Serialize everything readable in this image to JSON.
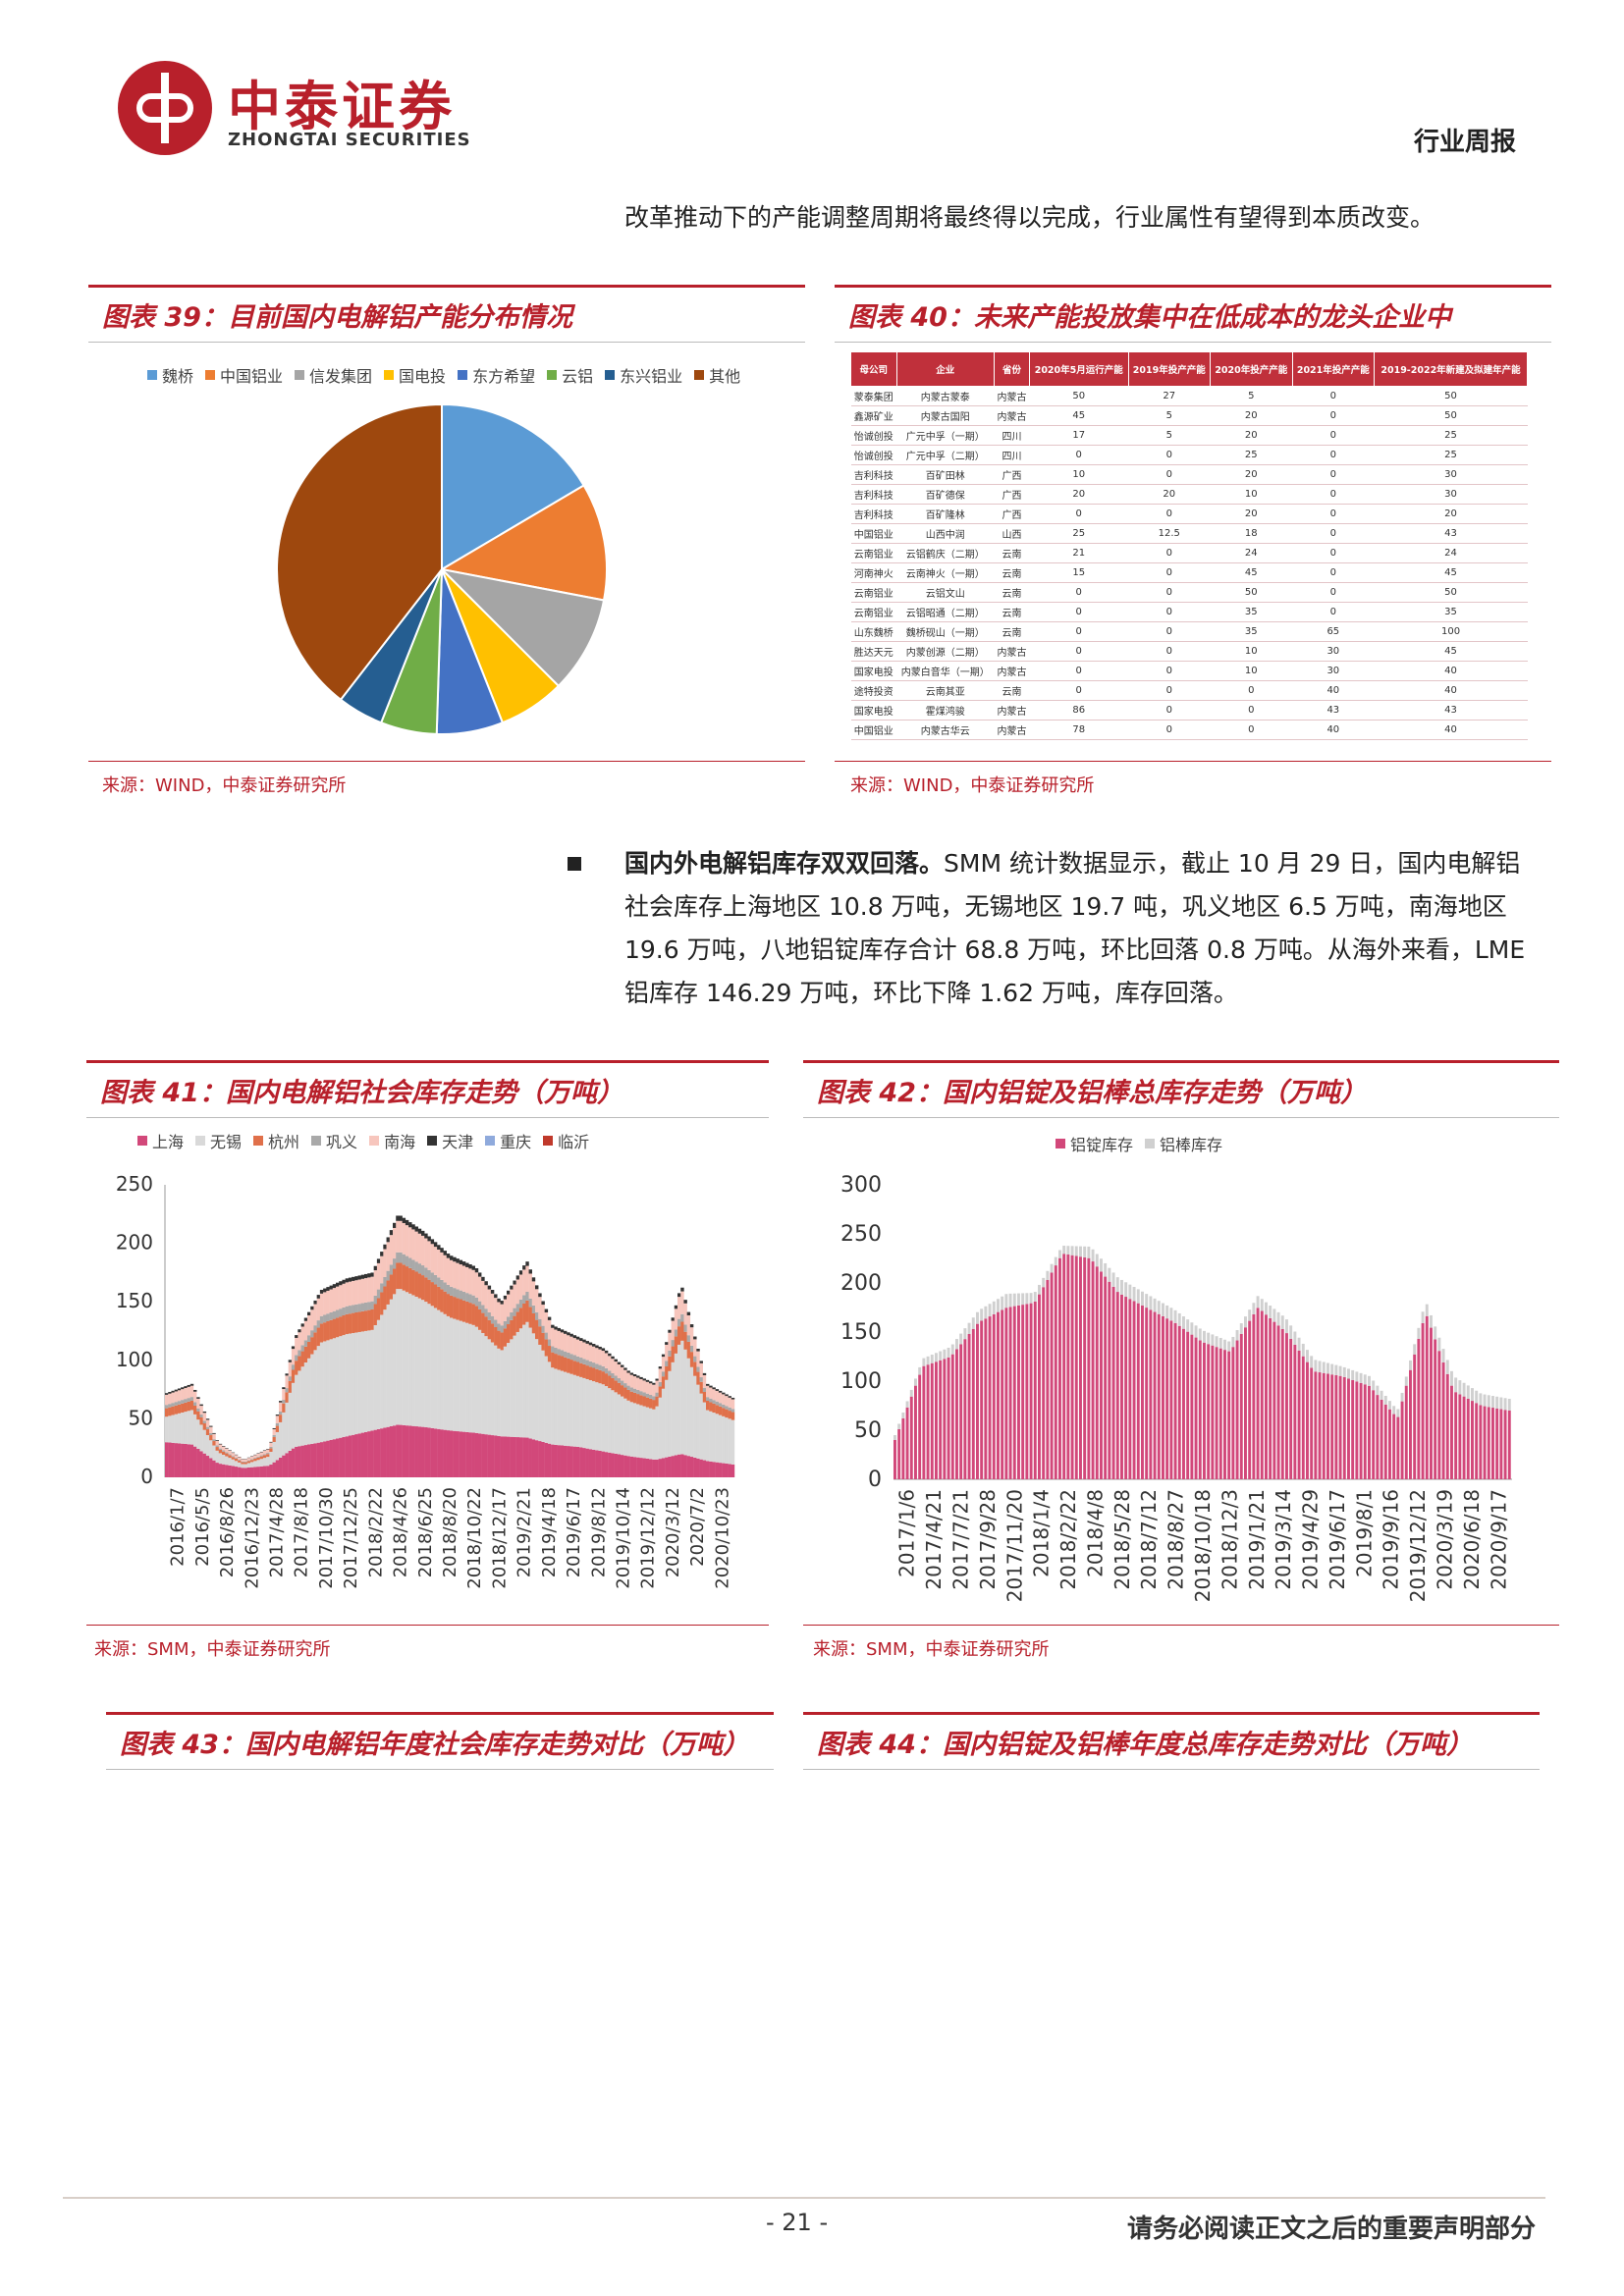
{
  "header": {
    "logo_cn": "中泰证券",
    "logo_en": "ZHONGTAI SECURITIES",
    "report_type": "行业周报"
  },
  "intro_text": "改革推动下的产能调整周期将最终得以完成，行业属性有望得到本质改变。",
  "fig39": {
    "title": "图表 39：目前国内电解铝产能分布情况",
    "source": "来源：WIND，中泰证券研究所"
  },
  "fig40": {
    "title": "图表 40：未来产能投放集中在低成本的龙头企业中",
    "source": "来源：WIND，中泰证券研究所",
    "headers": [
      "母公司",
      "企业",
      "省份",
      "2020年5月运行产能",
      "2019年投产产能",
      "2020年投产产能",
      "2021年投产产能",
      "2019-2022年新建及拟建年产能"
    ],
    "rows": [
      [
        "蒙泰集团",
        "内蒙古蒙泰",
        "内蒙古",
        "50",
        "27",
        "5",
        "0",
        "50"
      ],
      [
        "鑫源矿业",
        "内蒙古国阳",
        "内蒙古",
        "45",
        "5",
        "20",
        "0",
        "50"
      ],
      [
        "怡诚创投",
        "广元中孚（一期）",
        "四川",
        "17",
        "5",
        "20",
        "0",
        "25"
      ],
      [
        "怡诚创投",
        "广元中孚（二期）",
        "四川",
        "0",
        "0",
        "25",
        "0",
        "25"
      ],
      [
        "吉利科技",
        "百矿田林",
        "广西",
        "10",
        "0",
        "20",
        "0",
        "30"
      ],
      [
        "吉利科技",
        "百矿德保",
        "广西",
        "20",
        "20",
        "10",
        "0",
        "30"
      ],
      [
        "吉利科技",
        "百矿隆林",
        "广西",
        "0",
        "0",
        "20",
        "0",
        "20"
      ],
      [
        "中国铝业",
        "山西中润",
        "山西",
        "25",
        "12.5",
        "18",
        "0",
        "43"
      ],
      [
        "云南铝业",
        "云铝鹤庆（二期）",
        "云南",
        "21",
        "0",
        "24",
        "0",
        "24"
      ],
      [
        "河南神火",
        "云南神火（一期）",
        "云南",
        "15",
        "0",
        "45",
        "0",
        "45"
      ],
      [
        "云南铝业",
        "云铝文山",
        "云南",
        "0",
        "0",
        "50",
        "0",
        "50"
      ],
      [
        "云南铝业",
        "云铝昭通（二期）",
        "云南",
        "0",
        "0",
        "35",
        "0",
        "35"
      ],
      [
        "山东魏桥",
        "魏桥砚山（一期）",
        "云南",
        "0",
        "0",
        "35",
        "65",
        "100"
      ],
      [
        "胜达天元",
        "内蒙创源（二期）",
        "内蒙古",
        "0",
        "0",
        "10",
        "30",
        "45"
      ],
      [
        "国家电投",
        "内蒙白音华（一期）",
        "内蒙古",
        "0",
        "0",
        "10",
        "30",
        "40"
      ],
      [
        "途特投资",
        "云南其亚",
        "云南",
        "0",
        "0",
        "0",
        "40",
        "40"
      ],
      [
        "国家电投",
        "霍煤鸿骏",
        "内蒙古",
        "86",
        "0",
        "0",
        "43",
        "43"
      ],
      [
        "中国铝业",
        "内蒙古华云",
        "内蒙古",
        "78",
        "0",
        "0",
        "40",
        "40"
      ]
    ]
  },
  "bullet": {
    "bold": "国内外电解铝库存双双回落。",
    "text": "SMM 统计数据显示，截止 10 月 29 日，国内电解铝社会库存上海地区 10.8 万吨，无锡地区 19.7 吨，巩义地区 6.5 万吨，南海地区 19.6 万吨，八地铝锭库存合计 68.8 万吨，环比回落 0.8 万吨。从海外来看，LME 铝库存 146.29 万吨，环比下降 1.62 万吨，库存回落。"
  },
  "fig41": {
    "title": "图表 41：国内电解铝社会库存走势（万吨）",
    "source": "来源：SMM，中泰证券研究所"
  },
  "fig42": {
    "title": "图表 42：国内铝锭及铝棒总库存走势（万吨）",
    "source": "来源：SMM，中泰证券研究所"
  },
  "fig43": {
    "title": "图表 43：国内电解铝年度社会库存走势对比（万吨）"
  },
  "fig44": {
    "title": "图表 44：国内铝锭及铝棒年度总库存走势对比（万吨）"
  },
  "footer": {
    "page": "- 21 -",
    "disclaimer": "请务必阅读正文之后的重要声明部分"
  },
  "chart_data": [
    {
      "type": "pie",
      "legend": [
        "魏桥",
        "中国铝业",
        "信发集团",
        "国电投",
        "东方希望",
        "云铝",
        "东兴铝业",
        "其他"
      ],
      "colors": [
        "#5b9bd5",
        "#ed7d31",
        "#a5a5a5",
        "#ffc000",
        "#4472c4",
        "#70ad47",
        "#255e91",
        "#9e480e"
      ],
      "values": [
        16.5,
        11.5,
        9.5,
        6.5,
        6.5,
        5.5,
        4.5,
        39.5
      ]
    },
    {
      "type": "area",
      "y_ticks": [
        "0",
        "50",
        "100",
        "150",
        "200",
        "250"
      ],
      "ylim": [
        0,
        250
      ],
      "x_labels": [
        "2016/1/7",
        "2016/5/5",
        "2016/8/26",
        "2016/12/23",
        "2017/4/28",
        "2017/8/18",
        "2017/10/30",
        "2017/12/25",
        "2018/2/22",
        "2018/4/26",
        "2018/6/25",
        "2018/8/20",
        "2018/10/22",
        "2018/12/17",
        "2019/2/21",
        "2019/4/18",
        "2019/6/17",
        "2019/8/12",
        "2019/10/14",
        "2019/12/12",
        "2020/3/12",
        "2020/7/2",
        "2020/10/23"
      ],
      "legend": [
        "上海",
        "无锡",
        "杭州",
        "巩义",
        "南海",
        "天津",
        "重庆",
        "临沂"
      ],
      "colors": [
        "#d2487a",
        "#d9d9d9",
        "#e0704a",
        "#a9a9a9",
        "#f7c6bd",
        "#333333",
        "#8faadc",
        "#c0392b"
      ],
      "total": [
        72,
        80,
        30,
        15,
        25,
        120,
        160,
        170,
        175,
        225,
        210,
        190,
        180,
        150,
        185,
        130,
        120,
        110,
        90,
        80,
        165,
        80,
        68
      ],
      "shanghai": [
        30,
        28,
        12,
        8,
        10,
        26,
        30,
        35,
        40,
        45,
        43,
        40,
        38,
        35,
        34,
        28,
        26,
        22,
        18,
        15,
        20,
        14,
        11
      ]
    },
    {
      "type": "bar",
      "y_ticks": [
        "0",
        "50",
        "100",
        "150",
        "200",
        "250",
        "300"
      ],
      "ylim": [
        0,
        300
      ],
      "x_labels": [
        "2017/1/6",
        "2017/4/21",
        "2017/7/21",
        "2017/9/28",
        "2017/11/20",
        "2018/1/4",
        "2018/2/22",
        "2018/4/8",
        "2018/5/28",
        "2018/7/12",
        "2018/8/27",
        "2018/10/18",
        "2018/12/3",
        "2019/1/21",
        "2019/3/14",
        "2019/4/29",
        "2019/6/17",
        "2019/8/1",
        "2019/9/16",
        "2019/12/12",
        "2020/3/19",
        "2020/6/18",
        "2020/9/17"
      ],
      "legend": [
        "铝锭库存",
        "铝棒库存"
      ],
      "colors": [
        "#d2487a",
        "#d0d0d0"
      ],
      "ingot": [
        40,
        115,
        125,
        160,
        175,
        180,
        230,
        225,
        190,
        175,
        160,
        140,
        130,
        175,
        150,
        110,
        105,
        95,
        62,
        170,
        90,
        75,
        70
      ],
      "rod": [
        5,
        8,
        10,
        12,
        14,
        10,
        8,
        12,
        15,
        14,
        13,
        12,
        10,
        12,
        14,
        12,
        10,
        10,
        8,
        12,
        15,
        12,
        12
      ]
    }
  ]
}
